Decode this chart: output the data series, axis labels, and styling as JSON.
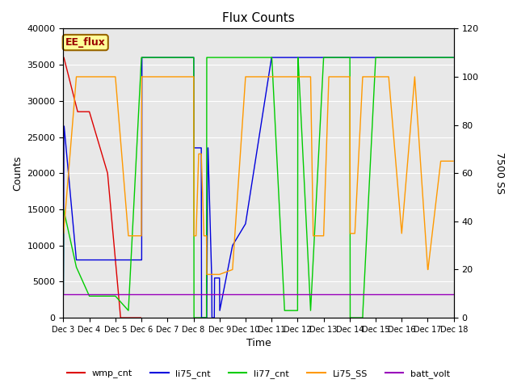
{
  "title": "Flux Counts",
  "xlabel": "Time",
  "ylabel_left": "Counts",
  "ylabel_right": "7500 SS",
  "ylim_left": [
    0,
    40000
  ],
  "ylim_right": [
    0,
    120
  ],
  "background_color": "#e8e8e8",
  "legend_box_label": "EE_flux",
  "legend_box_color": "#ffff99",
  "legend_box_border": "#996600",
  "series": {
    "wmp_cnt": {
      "color": "#dd0000",
      "lw": 1.0,
      "axis": "left",
      "x": [
        3.0,
        3.02,
        3.55,
        4.0,
        4.7,
        5.2,
        5.5,
        6.0
      ],
      "y": [
        36000,
        36000,
        28500,
        28500,
        20000,
        0,
        0,
        0
      ]
    },
    "li75_cnt": {
      "color": "#0000dd",
      "lw": 1.0,
      "axis": "left",
      "x": [
        3.0,
        3.01,
        3.02,
        3.03,
        3.5,
        4.0,
        5.5,
        6.0,
        6.01,
        6.02,
        7.0,
        7.5,
        8.0,
        8.01,
        8.02,
        8.3,
        8.31,
        8.5,
        8.51,
        8.55,
        8.56,
        8.7,
        8.71,
        8.8,
        8.81,
        8.9,
        9.0,
        9.01,
        9.5,
        10.0,
        11.0,
        11.5,
        12.0,
        12.01,
        12.5,
        13.0,
        14.0,
        14.01,
        14.5,
        15.0,
        16.0,
        16.01,
        17.0,
        18.0
      ],
      "y": [
        3200,
        9000,
        26500,
        26500,
        8000,
        8000,
        8000,
        8000,
        8000,
        36000,
        36000,
        36000,
        36000,
        36000,
        23500,
        23500,
        0,
        0,
        0,
        23500,
        23500,
        5500,
        0,
        0,
        5500,
        5500,
        5500,
        1000,
        10000,
        13000,
        36000,
        36000,
        36000,
        36000,
        36000,
        36000,
        36000,
        36000,
        36000,
        36000,
        36000,
        36000,
        36000,
        36000
      ]
    },
    "li77_cnt": {
      "color": "#00cc00",
      "lw": 1.0,
      "axis": "left",
      "x": [
        3.0,
        3.01,
        3.5,
        4.0,
        4.5,
        5.0,
        5.5,
        6.0,
        6.01,
        7.0,
        7.5,
        8.0,
        8.01,
        8.02,
        8.5,
        8.51,
        8.52,
        9.0,
        9.01,
        11.0,
        11.01,
        11.5,
        12.0,
        12.01,
        12.02,
        12.5,
        13.0,
        13.5,
        14.0,
        14.01,
        14.02,
        14.5,
        14.51,
        15.0,
        16.0,
        17.0,
        17.5,
        18.0
      ],
      "y": [
        3200,
        15000,
        7000,
        3000,
        3000,
        3000,
        1000,
        36000,
        36000,
        36000,
        36000,
        36000,
        36000,
        0,
        0,
        36000,
        36000,
        36000,
        36000,
        36000,
        36000,
        1000,
        1000,
        36000,
        36000,
        1000,
        36000,
        36000,
        36000,
        36000,
        0,
        0,
        1000,
        36000,
        36000,
        36000,
        36000,
        36000
      ]
    },
    "Li75_SS": {
      "color": "#ff9900",
      "lw": 1.0,
      "axis": "right",
      "x": [
        3.0,
        3.01,
        3.5,
        4.0,
        5.0,
        5.5,
        6.0,
        6.01,
        7.0,
        7.3,
        7.5,
        8.0,
        8.01,
        8.02,
        8.1,
        8.2,
        8.3,
        8.4,
        8.5,
        8.51,
        8.6,
        8.7,
        8.8,
        8.9,
        9.0,
        9.5,
        10.0,
        11.0,
        11.5,
        12.0,
        12.01,
        12.5,
        12.6,
        13.0,
        13.2,
        13.3,
        13.5,
        14.0,
        14.01,
        14.02,
        14.1,
        14.2,
        14.5,
        14.51,
        15.0,
        15.1,
        15.5,
        16.0,
        16.5,
        17.0,
        17.01,
        17.5,
        18.0
      ],
      "y": [
        35,
        35,
        100,
        100,
        100,
        34,
        34,
        100,
        100,
        100,
        100,
        100,
        100,
        34,
        34,
        68,
        68,
        34,
        34,
        18,
        18,
        18,
        18,
        18,
        18,
        20,
        100,
        100,
        100,
        100,
        100,
        100,
        34,
        34,
        100,
        100,
        100,
        100,
        100,
        35,
        35,
        35,
        100,
        100,
        100,
        100,
        100,
        35,
        100,
        20,
        20,
        65,
        65
      ]
    },
    "batt_volt": {
      "color": "#9900bb",
      "lw": 1.0,
      "axis": "left",
      "x": [
        3.0,
        5.5,
        6.0,
        7.0,
        8.0,
        8.5,
        9.0,
        10.0,
        11.0,
        11.5,
        12.0,
        12.5,
        13.0,
        13.5,
        14.0,
        14.5,
        15.0,
        15.5,
        16.0,
        17.0,
        18.0
      ],
      "y": [
        3300,
        3300,
        3300,
        3300,
        3300,
        3300,
        3300,
        3300,
        3300,
        3300,
        3300,
        3300,
        3300,
        3300,
        3300,
        3300,
        3300,
        3300,
        3300,
        3300,
        3300
      ]
    }
  },
  "xticks": [
    3,
    4,
    5,
    6,
    7,
    8,
    9,
    10,
    11,
    12,
    13,
    14,
    15,
    16,
    17,
    18
  ],
  "xtick_labels": [
    "Dec 3",
    "Dec 4",
    "Dec 5",
    "Dec 6",
    "Dec 7",
    "Dec 8",
    "Dec 9",
    "Dec 10",
    "Dec 11",
    "Dec 12",
    "Dec 13",
    "Dec 14",
    "Dec 15",
    "Dec 16",
    "Dec 17",
    "Dec 18"
  ],
  "yticks_left": [
    0,
    5000,
    10000,
    15000,
    20000,
    25000,
    30000,
    35000,
    40000
  ],
  "yticks_right": [
    0,
    20,
    40,
    60,
    80,
    100,
    120
  ],
  "figsize": [
    6.4,
    4.8
  ],
  "dpi": 100
}
